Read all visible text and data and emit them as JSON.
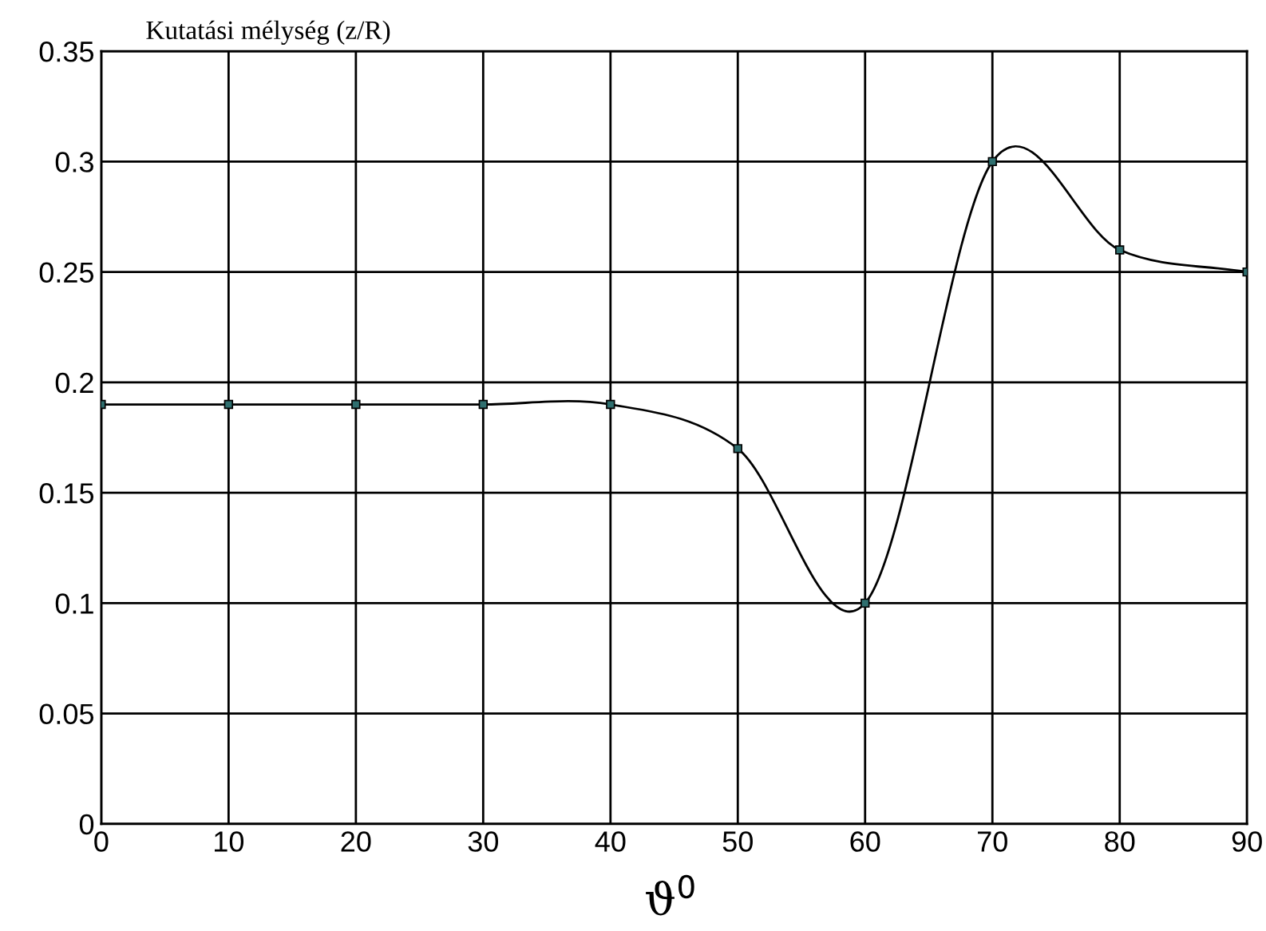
{
  "chart_data": {
    "type": "line",
    "ylabel": "Kutatási mélység (z/R)",
    "xlabel": "ϑ$^{0}$",
    "x": [
      0,
      10,
      20,
      30,
      40,
      50,
      60,
      70,
      80,
      90
    ],
    "series": [
      {
        "color": "#000000",
        "values": [
          0.19,
          0.19,
          0.19,
          0.19,
          0.19,
          0.17,
          0.1,
          0.3,
          0.26,
          0.25
        ]
      }
    ],
    "marker": "square",
    "line_style": "solid",
    "grid": true,
    "legend": false,
    "xlim": [
      0,
      90
    ],
    "xticks": [
      0,
      10,
      20,
      30,
      40,
      50,
      60,
      70,
      80,
      90
    ],
    "ylim": [
      0,
      0.35
    ],
    "yticks": [
      0,
      0.05,
      0.1,
      0.15,
      0.2,
      0.25,
      0.3,
      0.35
    ]
  }
}
